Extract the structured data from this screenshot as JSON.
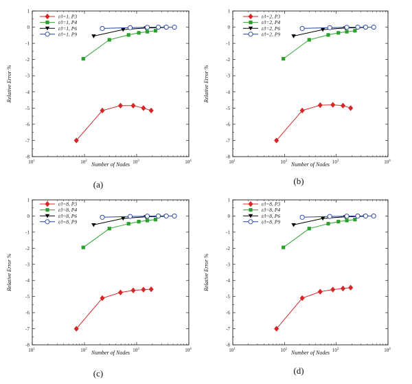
{
  "chart_data": [
    {
      "type": "line",
      "caption": "(a)",
      "xlabel": "Number of Nodes",
      "ylabel": "Relative Error %",
      "xscale": "log",
      "xlim": [
        10,
        10000
      ],
      "ylim": [
        -8,
        1
      ],
      "xticks": [
        {
          "base": "10",
          "exp": "1"
        },
        {
          "base": "10",
          "exp": "2"
        },
        {
          "base": "10",
          "exp": "3"
        },
        {
          "base": "10",
          "exp": "4"
        }
      ],
      "yticks": [
        "-8",
        "-7",
        "-6",
        "-5",
        "-4",
        "-3",
        "-2",
        "-1",
        "0",
        "1"
      ],
      "legend_position": "top-left",
      "series": [
        {
          "name": "t/l=1, P3",
          "color": "#d62728",
          "marker": "diamond",
          "x": [
            70,
            220,
            490,
            860,
            1350,
            1900
          ],
          "y": [
            -7.0,
            -5.15,
            -4.85,
            -4.85,
            -5.0,
            -5.15
          ]
        },
        {
          "name": "t/l=1, P4",
          "color": "#2ca02c",
          "marker": "square",
          "x": [
            95,
            300,
            700,
            1100,
            1600,
            2300
          ],
          "y": [
            -1.95,
            -0.78,
            -0.48,
            -0.35,
            -0.28,
            -0.22
          ]
        },
        {
          "name": "t/l=1, P6",
          "color": "#000000",
          "marker": "triangle-down",
          "x": [
            150,
            550,
            1500,
            3600
          ],
          "y": [
            -0.55,
            -0.15,
            -0.05,
            -0.02
          ]
        },
        {
          "name": "t/l=1, P9",
          "color": "#1f3f9f",
          "marker": "circle",
          "x": [
            220,
            750,
            1600,
            2600,
            3700,
            5300
          ],
          "y": [
            -0.08,
            -0.03,
            -0.01,
            0.0,
            0.0,
            0.0
          ]
        }
      ]
    },
    {
      "type": "line",
      "caption": "(b)",
      "xlabel": "Number of Nodes",
      "ylabel": "Relative Error %",
      "xscale": "log",
      "xlim": [
        10,
        10000
      ],
      "ylim": [
        -8,
        1
      ],
      "xticks": [
        {
          "base": "10",
          "exp": "1"
        },
        {
          "base": "10",
          "exp": "2"
        },
        {
          "base": "10",
          "exp": "3"
        },
        {
          "base": "10",
          "exp": "4"
        }
      ],
      "yticks": [
        "-8",
        "-7",
        "-6",
        "-5",
        "-4",
        "-3",
        "-2",
        "-1",
        "0",
        "1"
      ],
      "legend_position": "top-left",
      "series": [
        {
          "name": "t/l=2, P3",
          "color": "#d62728",
          "marker": "diamond",
          "x": [
            70,
            220,
            490,
            860,
            1350,
            1900
          ],
          "y": [
            -7.0,
            -5.15,
            -4.82,
            -4.8,
            -4.85,
            -5.0
          ]
        },
        {
          "name": "t/l=2, P4",
          "color": "#2ca02c",
          "marker": "square",
          "x": [
            95,
            300,
            700,
            1100,
            1600,
            2300
          ],
          "y": [
            -1.95,
            -0.78,
            -0.48,
            -0.35,
            -0.28,
            -0.22
          ]
        },
        {
          "name": "t/l=2, P6",
          "color": "#000000",
          "marker": "triangle-down",
          "x": [
            150,
            550,
            1500,
            3600
          ],
          "y": [
            -0.55,
            -0.15,
            -0.05,
            -0.02
          ]
        },
        {
          "name": "t/l=2, P9",
          "color": "#1f3f9f",
          "marker": "circle",
          "x": [
            220,
            750,
            1600,
            2600,
            3700,
            5300
          ],
          "y": [
            -0.08,
            -0.03,
            -0.01,
            0.0,
            0.0,
            0.0
          ]
        }
      ]
    },
    {
      "type": "line",
      "caption": "(c)",
      "xlabel": "Number of Nodes",
      "ylabel": "Relative Error %",
      "xscale": "log",
      "xlim": [
        10,
        10000
      ],
      "ylim": [
        -8,
        1
      ],
      "xticks": [
        {
          "base": "10",
          "exp": "1"
        },
        {
          "base": "10",
          "exp": "2"
        },
        {
          "base": "10",
          "exp": "3"
        },
        {
          "base": "10",
          "exp": "4"
        }
      ],
      "yticks": [
        "-8",
        "-7",
        "-6",
        "-5",
        "-4",
        "-3",
        "-2",
        "-1",
        "0",
        "1"
      ],
      "legend_position": "top-left",
      "series": [
        {
          "name": "t/l=8, P3",
          "color": "#d62728",
          "marker": "diamond",
          "x": [
            70,
            220,
            490,
            860,
            1350,
            1900
          ],
          "y": [
            -7.0,
            -5.1,
            -4.75,
            -4.62,
            -4.57,
            -4.55
          ]
        },
        {
          "name": "t/l=8, P4",
          "color": "#2ca02c",
          "marker": "square",
          "x": [
            95,
            300,
            700,
            1100,
            1600,
            2300
          ],
          "y": [
            -1.95,
            -0.78,
            -0.48,
            -0.35,
            -0.28,
            -0.22
          ]
        },
        {
          "name": "t/l=8, P6",
          "color": "#000000",
          "marker": "triangle-down",
          "x": [
            150,
            550,
            1500,
            3600
          ],
          "y": [
            -0.55,
            -0.15,
            -0.05,
            -0.02
          ]
        },
        {
          "name": "t/l=8, P9",
          "color": "#1f3f9f",
          "marker": "circle",
          "x": [
            220,
            750,
            1600,
            2600,
            3700,
            5300
          ],
          "y": [
            -0.08,
            -0.03,
            -0.01,
            0.0,
            0.0,
            0.0
          ]
        }
      ]
    },
    {
      "type": "line",
      "caption": "(d)",
      "xlabel": "Number of Nodes",
      "ylabel": "Relative Error %",
      "xscale": "log",
      "xlim": [
        10,
        10000
      ],
      "ylim": [
        -8,
        1
      ],
      "xticks": [
        {
          "base": "10",
          "exp": "1"
        },
        {
          "base": "10",
          "exp": "2"
        },
        {
          "base": "10",
          "exp": "3"
        },
        {
          "base": "10",
          "exp": "4"
        }
      ],
      "yticks": [
        "-8",
        "-7",
        "-6",
        "-5",
        "-4",
        "-3",
        "-2",
        "-1",
        "0",
        "1"
      ],
      "legend_position": "top-left",
      "series": [
        {
          "name": "t/l=8, P3",
          "color": "#d62728",
          "marker": "diamond",
          "x": [
            70,
            220,
            490,
            860,
            1350,
            1900
          ],
          "y": [
            -7.0,
            -5.1,
            -4.7,
            -4.57,
            -4.5,
            -4.45
          ]
        },
        {
          "name": "t/l=8, P4",
          "color": "#2ca02c",
          "marker": "square",
          "x": [
            95,
            300,
            700,
            1100,
            1600,
            2300
          ],
          "y": [
            -1.95,
            -0.78,
            -0.48,
            -0.35,
            -0.28,
            -0.22
          ]
        },
        {
          "name": "t/l=8, P6",
          "color": "#000000",
          "marker": "triangle-down",
          "x": [
            150,
            550,
            1500,
            3600
          ],
          "y": [
            -0.55,
            -0.15,
            -0.05,
            -0.02
          ]
        },
        {
          "name": "t/l=8, P9",
          "color": "#1f3f9f",
          "marker": "circle",
          "x": [
            220,
            750,
            1600,
            2600,
            3700,
            5300
          ],
          "y": [
            -0.08,
            -0.03,
            -0.01,
            0.0,
            0.0,
            0.0
          ]
        }
      ]
    }
  ]
}
